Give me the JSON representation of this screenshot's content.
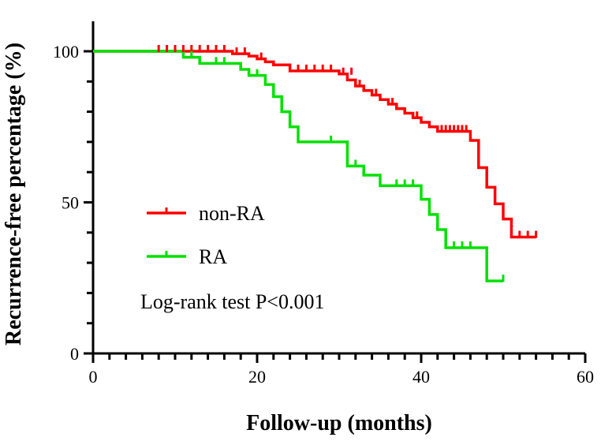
{
  "chart_data": {
    "type": "line",
    "subtype": "kaplan-meier-step",
    "xlabel": "Follow-up (months)",
    "ylabel": "Recurrence-free percentage (%)",
    "xlim": [
      0,
      60
    ],
    "ylim": [
      0,
      100
    ],
    "xticks": [
      0,
      20,
      40,
      60
    ],
    "yticks": [
      0,
      50,
      100
    ],
    "grid": false,
    "legend_position": "center-left",
    "annotation": "Log-rank test P<0.001",
    "series": [
      {
        "name": "non-RA",
        "color": "#ff0000",
        "steps": [
          [
            0,
            100
          ],
          [
            17,
            99.2
          ],
          [
            19,
            98.4
          ],
          [
            20,
            97.5
          ],
          [
            21,
            96.5
          ],
          [
            22,
            95.5
          ],
          [
            24,
            93.5
          ],
          [
            30,
            92.5
          ],
          [
            31,
            90.5
          ],
          [
            32,
            88.5
          ],
          [
            33,
            87
          ],
          [
            34,
            85.5
          ],
          [
            35,
            84
          ],
          [
            36,
            82.5
          ],
          [
            37,
            81
          ],
          [
            38,
            79.5
          ],
          [
            39,
            78
          ],
          [
            40,
            76.5
          ],
          [
            41,
            75
          ],
          [
            42,
            73.5
          ],
          [
            46,
            70.5
          ],
          [
            47,
            61.5
          ],
          [
            48,
            55
          ],
          [
            49,
            49.5
          ],
          [
            50,
            44.5
          ],
          [
            51,
            38.5
          ],
          [
            54,
            38.5
          ]
        ],
        "censored": [
          [
            8,
            100
          ],
          [
            9,
            100
          ],
          [
            10,
            100
          ],
          [
            11,
            100
          ],
          [
            12,
            100
          ],
          [
            13,
            100
          ],
          [
            14,
            100
          ],
          [
            15,
            100
          ],
          [
            16,
            100
          ],
          [
            17.5,
            99.2
          ],
          [
            18.5,
            99.2
          ],
          [
            20.5,
            97.5
          ],
          [
            25,
            93.5
          ],
          [
            26,
            93.5
          ],
          [
            27,
            93.5
          ],
          [
            28,
            93.5
          ],
          [
            29,
            93.5
          ],
          [
            30.5,
            92.5
          ],
          [
            31.5,
            92.5
          ],
          [
            32.5,
            88.5
          ],
          [
            34.5,
            85.5
          ],
          [
            36.5,
            82.5
          ],
          [
            39.5,
            78
          ],
          [
            42.5,
            73.5
          ],
          [
            43,
            73.5
          ],
          [
            43.5,
            73.5
          ],
          [
            44,
            73.5
          ],
          [
            44.5,
            73.5
          ],
          [
            45,
            73.5
          ],
          [
            45.5,
            73.5
          ],
          [
            52,
            38.5
          ],
          [
            53,
            38.5
          ],
          [
            54,
            38.5
          ]
        ]
      },
      {
        "name": "RA",
        "color": "#00e000",
        "steps": [
          [
            0,
            100
          ],
          [
            11,
            98
          ],
          [
            13,
            96
          ],
          [
            18,
            94
          ],
          [
            19,
            92
          ],
          [
            21,
            89
          ],
          [
            22,
            85
          ],
          [
            23,
            80
          ],
          [
            24,
            75
          ],
          [
            25,
            70
          ],
          [
            31,
            62
          ],
          [
            33,
            59
          ],
          [
            35,
            55.5
          ],
          [
            40,
            51
          ],
          [
            41,
            46
          ],
          [
            42,
            41
          ],
          [
            43,
            35
          ],
          [
            48,
            24
          ],
          [
            50,
            24
          ]
        ],
        "censored": [
          [
            12,
            98
          ],
          [
            15,
            96
          ],
          [
            16,
            96
          ],
          [
            20,
            92
          ],
          [
            29,
            70
          ],
          [
            32,
            62
          ],
          [
            37,
            55.5
          ],
          [
            38,
            55.5
          ],
          [
            39,
            55.5
          ],
          [
            44,
            35
          ],
          [
            45,
            35
          ],
          [
            46,
            35
          ],
          [
            50,
            24
          ]
        ]
      }
    ]
  }
}
